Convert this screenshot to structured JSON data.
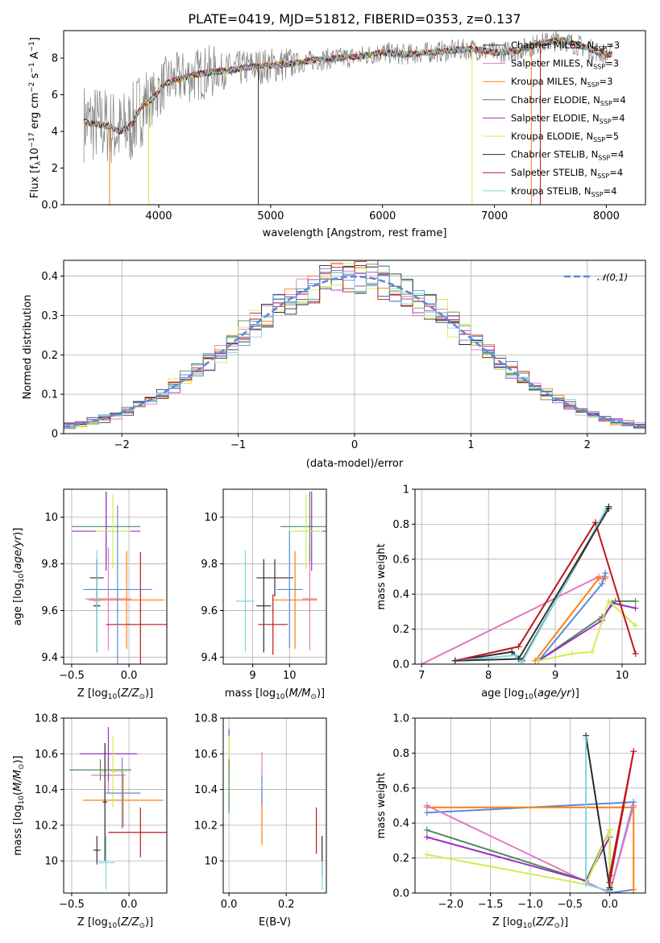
{
  "figure_title": "PLATE=0419, MJD=51812, FIBERID=0353, z=0.137",
  "colors": {
    "Chabrier MILES": "#333333",
    "Salpeter MILES": "#e377c2",
    "Kroupa MILES": "#ff7f0e",
    "Chabrier ELODIE": "#4d8c57",
    "Salpeter ELODIE": "#9b30c0",
    "Kroupa ELODIE": "#d4ec4f",
    "Chabrier STELIB": "#2a2a2a",
    "Salpeter STELIB": "#c0161b",
    "Kroupa STELIB": "#7fd8df",
    "data": "#808080",
    "normal": "#5b8ad8",
    "blue": "#5b8ad8"
  },
  "chart_data": [
    {
      "id": "spectrum",
      "type": "line",
      "title": "PLATE=0419, MJD=51812, FIBERID=0353, z=0.137",
      "xlabel": "wavelength [Angstrom, rest frame]",
      "ylabel": "Flux [f_λ 10^-17 erg cm^-2 s^-1 A^-1]",
      "xlim": [
        3150,
        8350
      ],
      "ylim": [
        0,
        9.5
      ],
      "xticks": [
        4000,
        5000,
        6000,
        7000,
        8000
      ],
      "yticks": [
        0,
        2,
        4,
        6,
        8
      ],
      "grid": false,
      "legend_position": "top-right",
      "data_continuum": {
        "x": [
          3350,
          3450,
          3550,
          3650,
          3750,
          3850,
          3950,
          4050,
          4200,
          4400,
          4600,
          4800,
          5000,
          5200,
          5400,
          5600,
          5800,
          6000,
          6200,
          6400,
          6600,
          6800,
          7000,
          7200,
          7400,
          7600,
          7800,
          8000
        ],
        "y": [
          4.5,
          4.4,
          4.3,
          4.0,
          4.3,
          5.4,
          5.8,
          6.6,
          6.9,
          7.2,
          7.3,
          7.5,
          7.6,
          7.7,
          7.9,
          8.0,
          8.1,
          8.3,
          8.2,
          8.3,
          8.4,
          8.5,
          8.3,
          8.4,
          8.8,
          9.0,
          8.6,
          8.2
        ]
      },
      "legend": [
        "Chabrier MILES, N_SSP=3",
        "Salpeter MILES, N_SSP=3",
        "Kroupa MILES, N_SSP=3",
        "Chabrier ELODIE, N_SSP=4",
        "Salpeter ELODIE, N_SSP=4",
        "Kroupa ELODIE, N_SSP=5",
        "Chabrier STELIB, N_SSP=4",
        "Salpeter STELIB, N_SSP=4",
        "Kroupa STELIB, N_SSP=4"
      ]
    },
    {
      "id": "residuals",
      "type": "histogram",
      "xlabel": "(data-model)/error",
      "ylabel": "Normed distribution",
      "xlim": [
        -2.5,
        2.5
      ],
      "ylim": [
        0,
        0.44
      ],
      "xticks": [
        -2,
        -1,
        0,
        1,
        2
      ],
      "yticks": [
        0.0,
        0.1,
        0.2,
        0.3,
        0.4
      ],
      "grid": true,
      "legend": [
        "N(0,1)"
      ],
      "legend_position": "top-right",
      "normal_curve": {
        "mean": 0,
        "sigma": 1
      }
    },
    {
      "id": "age_vs_Z",
      "type": "errorbar",
      "xlabel": "Z [log10(Z/Z_sun)]",
      "ylabel": "age  [log10(age/yr)]",
      "xlim": [
        -0.57,
        0.33
      ],
      "ylim": [
        9.37,
        10.12
      ],
      "xticks": [
        -0.5,
        0.0
      ],
      "yticks": [
        9.4,
        9.6,
        9.8,
        10.0
      ],
      "grid": true,
      "points": [
        {
          "model": "Chabrier MILES",
          "x": -0.28,
          "y": 9.74,
          "xerr": 0.06,
          "yerr": 0.08
        },
        {
          "model": "Salpeter MILES",
          "x": -0.18,
          "y": 9.65,
          "xerr": 0.2,
          "yerr": 0.22
        },
        {
          "model": "Kroupa MILES",
          "x": -0.02,
          "y": 9.645,
          "xerr": 0.33,
          "yerr": 0.21
        },
        {
          "model": "Chabrier ELODIE",
          "x": -0.2,
          "y": 9.96,
          "xerr": 0.3,
          "yerr": 0.15
        },
        {
          "model": "Salpeter ELODIE",
          "x": -0.2,
          "y": 9.94,
          "xerr": 0.3,
          "yerr": 0.17
        },
        {
          "model": "Kroupa ELODIE",
          "x": -0.14,
          "y": 9.94,
          "xerr": 0.15,
          "yerr": 0.16
        },
        {
          "model": "Chabrier STELIB",
          "x": -0.28,
          "y": 9.62,
          "xerr": 0.03,
          "yerr": 0.2
        },
        {
          "model": "Salpeter STELIB",
          "x": 0.1,
          "y": 9.54,
          "xerr": 0.3,
          "yerr": 0.31
        },
        {
          "model": "Kroupa STELIB",
          "x": -0.28,
          "y": 9.64,
          "xerr": 0.03,
          "yerr": 0.22
        },
        {
          "model": "blue",
          "x": -0.1,
          "y": 9.69,
          "xerr": 0.3,
          "yerr": 0.36
        }
      ]
    },
    {
      "id": "age_vs_mass",
      "type": "errorbar",
      "xlabel": "mass [log10(M/M_sun)]",
      "ylabel": "",
      "xlim": [
        8.2,
        11.0
      ],
      "ylim": [
        9.37,
        10.12
      ],
      "xticks": [
        9.0,
        10.0
      ],
      "yticks": [
        9.4,
        9.6,
        9.8,
        10.0
      ],
      "grid": true,
      "points": [
        {
          "model": "Chabrier MILES",
          "x": 9.6,
          "y": 9.74,
          "xerr": 0.5,
          "yerr": 0.08
        },
        {
          "model": "Salpeter MILES",
          "x": 10.55,
          "y": 9.65,
          "xerr": 0.2,
          "yerr": 0.22
        },
        {
          "model": "Kroupa MILES",
          "x": 10.15,
          "y": 9.645,
          "xerr": 0.6,
          "yerr": 0.21
        },
        {
          "model": "Chabrier ELODIE",
          "x": 10.55,
          "y": 9.96,
          "xerr": 0.8,
          "yerr": 0.15
        },
        {
          "model": "Salpeter ELODIE",
          "x": 10.6,
          "y": 9.94,
          "xerr": 0.45,
          "yerr": 0.17
        },
        {
          "model": "Kroupa ELODIE",
          "x": 10.45,
          "y": 9.94,
          "xerr": 0.45,
          "yerr": 0.16
        },
        {
          "model": "Chabrier STELIB",
          "x": 9.3,
          "y": 9.62,
          "xerr": 0.2,
          "yerr": 0.2
        },
        {
          "model": "Salpeter STELIB",
          "x": 9.55,
          "y": 9.54,
          "xerr": 0.4,
          "yerr": 0.13
        },
        {
          "model": "Kroupa STELIB",
          "x": 8.8,
          "y": 9.64,
          "xerr": 0.25,
          "yerr": 0.22
        },
        {
          "model": "blue",
          "x": 10.0,
          "y": 9.69,
          "xerr": 0.35,
          "yerr": 0.25
        }
      ]
    },
    {
      "id": "weight_vs_age",
      "type": "line",
      "xlabel": "age  [log10(age/yr)]",
      "ylabel": "mass weight",
      "xlim": [
        6.9,
        10.35
      ],
      "ylim": [
        0,
        1
      ],
      "xticks": [
        7,
        8,
        9,
        10
      ],
      "yticks": [
        0.0,
        0.2,
        0.4,
        0.6,
        0.8,
        1.0
      ],
      "grid": true,
      "series": [
        {
          "model": "Salpeter MILES",
          "x": [
            7.0,
            9.65,
            9.75
          ],
          "y": [
            0.0,
            0.5,
            0.5
          ]
        },
        {
          "model": "Kroupa MILES",
          "x": [
            8.7,
            9.65,
            9.75
          ],
          "y": [
            0.02,
            0.49,
            0.49
          ]
        },
        {
          "model": "blue",
          "x": [
            8.75,
            9.7,
            9.75
          ],
          "y": [
            0.02,
            0.46,
            0.52
          ]
        },
        {
          "model": "Chabrier ELODIE",
          "x": [
            8.75,
            9.7,
            9.9,
            10.2
          ],
          "y": [
            0.02,
            0.27,
            0.36,
            0.36
          ]
        },
        {
          "model": "Salpeter ELODIE",
          "x": [
            8.75,
            9.7,
            9.85,
            10.2
          ],
          "y": [
            0.02,
            0.25,
            0.35,
            0.32
          ]
        },
        {
          "model": "Kroupa ELODIE",
          "x": [
            8.75,
            9.25,
            9.55,
            9.8,
            10.2
          ],
          "y": [
            0.02,
            0.06,
            0.07,
            0.36,
            0.22
          ]
        },
        {
          "model": "Chabrier STELIB",
          "x": [
            7.5,
            8.35,
            8.5,
            9.8
          ],
          "y": [
            0.02,
            0.07,
            0.02,
            0.9
          ]
        },
        {
          "model": "Salpeter STELIB",
          "x": [
            7.5,
            8.45,
            9.6,
            10.2
          ],
          "y": [
            0.02,
            0.1,
            0.81,
            0.06
          ]
        },
        {
          "model": "Kroupa STELIB",
          "x": [
            7.5,
            8.4,
            8.5,
            9.75
          ],
          "y": [
            0.02,
            0.05,
            0.01,
            0.88
          ]
        },
        {
          "model": "Chabrier MILES",
          "x": [
            7.5,
            8.45,
            9.8
          ],
          "y": [
            0.02,
            0.03,
            0.89
          ]
        }
      ]
    },
    {
      "id": "mass_vs_Z",
      "type": "errorbar",
      "xlabel": "Z [log10(Z/Z_sun)]",
      "ylabel": "mass [log10(M/M_sun)]",
      "xlim": [
        -0.57,
        0.33
      ],
      "ylim": [
        9.82,
        10.8
      ],
      "xticks": [
        -0.5,
        0.0
      ],
      "yticks": [
        10.0,
        10.2,
        10.4,
        10.6,
        10.8
      ],
      "grid": true,
      "points": [
        {
          "model": "Chabrier MILES",
          "x": -0.28,
          "y": 10.06,
          "xerr": 0.03,
          "yerr": 0.08
        },
        {
          "model": "Salpeter MILES",
          "x": -0.18,
          "y": 10.48,
          "xerr": 0.15,
          "yerr": 0.1
        },
        {
          "model": "Kroupa MILES",
          "x": -0.05,
          "y": 10.34,
          "xerr": 0.35,
          "yerr": 0.15
        },
        {
          "model": "Chabrier ELODIE",
          "x": -0.25,
          "y": 10.51,
          "xerr": 0.27,
          "yerr": 0.06
        },
        {
          "model": "Salpeter ELODIE",
          "x": -0.18,
          "y": 10.6,
          "xerr": 0.25,
          "yerr": 0.15
        },
        {
          "model": "Kroupa ELODIE",
          "x": -0.14,
          "y": 10.5,
          "xerr": 0.12,
          "yerr": 0.2
        },
        {
          "model": "Chabrier STELIB",
          "x": -0.21,
          "y": 10.33,
          "xerr": 0.02,
          "yerr": 0.33
        },
        {
          "model": "Salpeter STELIB",
          "x": 0.1,
          "y": 10.16,
          "xerr": 0.28,
          "yerr": 0.14
        },
        {
          "model": "Kroupa STELIB",
          "x": -0.2,
          "y": 9.99,
          "xerr": 0.08,
          "yerr": 0.15
        },
        {
          "model": "blue",
          "x": -0.06,
          "y": 10.38,
          "xerr": 0.16,
          "yerr": 0.2
        }
      ]
    },
    {
      "id": "mass_vs_EBV",
      "type": "errorbar",
      "xlabel": "E(B-V)",
      "ylabel": "",
      "xlim": [
        -0.02,
        0.34
      ],
      "ylim": [
        9.82,
        10.8
      ],
      "xticks": [
        0.0,
        0.2
      ],
      "yticks": [
        10.0,
        10.2,
        10.4,
        10.6,
        10.8
      ],
      "grid": true,
      "points": [
        {
          "model": "Salpeter ELODIE",
          "x": 0.0,
          "y": 10.62,
          "xerr": 0.0,
          "yerr": 0.12
        },
        {
          "model": "Kroupa ELODIE",
          "x": 0.0,
          "y": 10.5,
          "xerr": 0.0,
          "yerr": 0.2
        },
        {
          "model": "Chabrier ELODIE",
          "x": 0.0,
          "y": 10.42,
          "xerr": 0.0,
          "yerr": 0.15
        },
        {
          "model": "Salpeter MILES",
          "x": 0.115,
          "y": 10.44,
          "xerr": 0.0,
          "yerr": 0.17
        },
        {
          "model": "Kroupa MILES",
          "x": 0.115,
          "y": 10.22,
          "xerr": 0.0,
          "yerr": 0.13
        },
        {
          "model": "blue",
          "x": 0.115,
          "y": 10.4,
          "xerr": 0.0,
          "yerr": 0.08
        },
        {
          "model": "Salpeter STELIB",
          "x": 0.305,
          "y": 10.17,
          "xerr": 0.0,
          "yerr": 0.13
        },
        {
          "model": "Chabrier STELIB",
          "x": 0.325,
          "y": 10.03,
          "xerr": 0.0,
          "yerr": 0.11
        },
        {
          "model": "Kroupa STELIB",
          "x": 0.325,
          "y": 9.92,
          "xerr": 0.0,
          "yerr": 0.08
        }
      ]
    },
    {
      "id": "weight_vs_Z",
      "type": "line",
      "xlabel": "Z [log10(Z/Z_sun)]",
      "ylabel": "mass weight",
      "xlim": [
        -2.45,
        0.45
      ],
      "ylim": [
        0,
        1
      ],
      "xticks": [
        -2.0,
        -1.5,
        -1.0,
        -0.5,
        0.0
      ],
      "yticks": [
        0.0,
        0.2,
        0.4,
        0.6,
        0.8,
        1.0
      ],
      "grid": true,
      "series": [
        {
          "model": "blue",
          "x": [
            -2.3,
            0.3,
            0.0,
            0.3
          ],
          "y": [
            0.46,
            0.52,
            0.0,
            0.02
          ]
        },
        {
          "model": "Kroupa MILES",
          "x": [
            -2.3,
            0.3,
            0.3
          ],
          "y": [
            0.49,
            0.49,
            0.02
          ]
        },
        {
          "model": "Salpeter MILES",
          "x": [
            -2.3,
            0.0,
            0.3
          ],
          "y": [
            0.5,
            0.0,
            0.5
          ]
        },
        {
          "model": "Chabrier ELODIE",
          "x": [
            -2.3,
            -0.3,
            0.0,
            0.0
          ],
          "y": [
            0.36,
            0.07,
            0.36,
            0.02
          ]
        },
        {
          "model": "Salpeter ELODIE",
          "x": [
            -2.3,
            -0.3,
            0.0,
            0.0
          ],
          "y": [
            0.32,
            0.07,
            0.32,
            0.02
          ]
        },
        {
          "model": "Kroupa ELODIE",
          "x": [
            -2.3,
            -0.3,
            0.0,
            0.0
          ],
          "y": [
            0.22,
            0.05,
            0.36,
            0.02
          ]
        },
        {
          "model": "Chabrier STELIB",
          "x": [
            -0.3,
            0.0,
            0.0
          ],
          "y": [
            0.9,
            0.03,
            0.02
          ]
        },
        {
          "model": "Kroupa STELIB",
          "x": [
            -0.3,
            -0.3,
            0.0
          ],
          "y": [
            0.88,
            0.05,
            0.01
          ]
        },
        {
          "model": "Salpeter STELIB",
          "x": [
            0.0,
            0.3,
            0.0
          ],
          "y": [
            0.1,
            0.81,
            0.06
          ]
        }
      ]
    }
  ]
}
